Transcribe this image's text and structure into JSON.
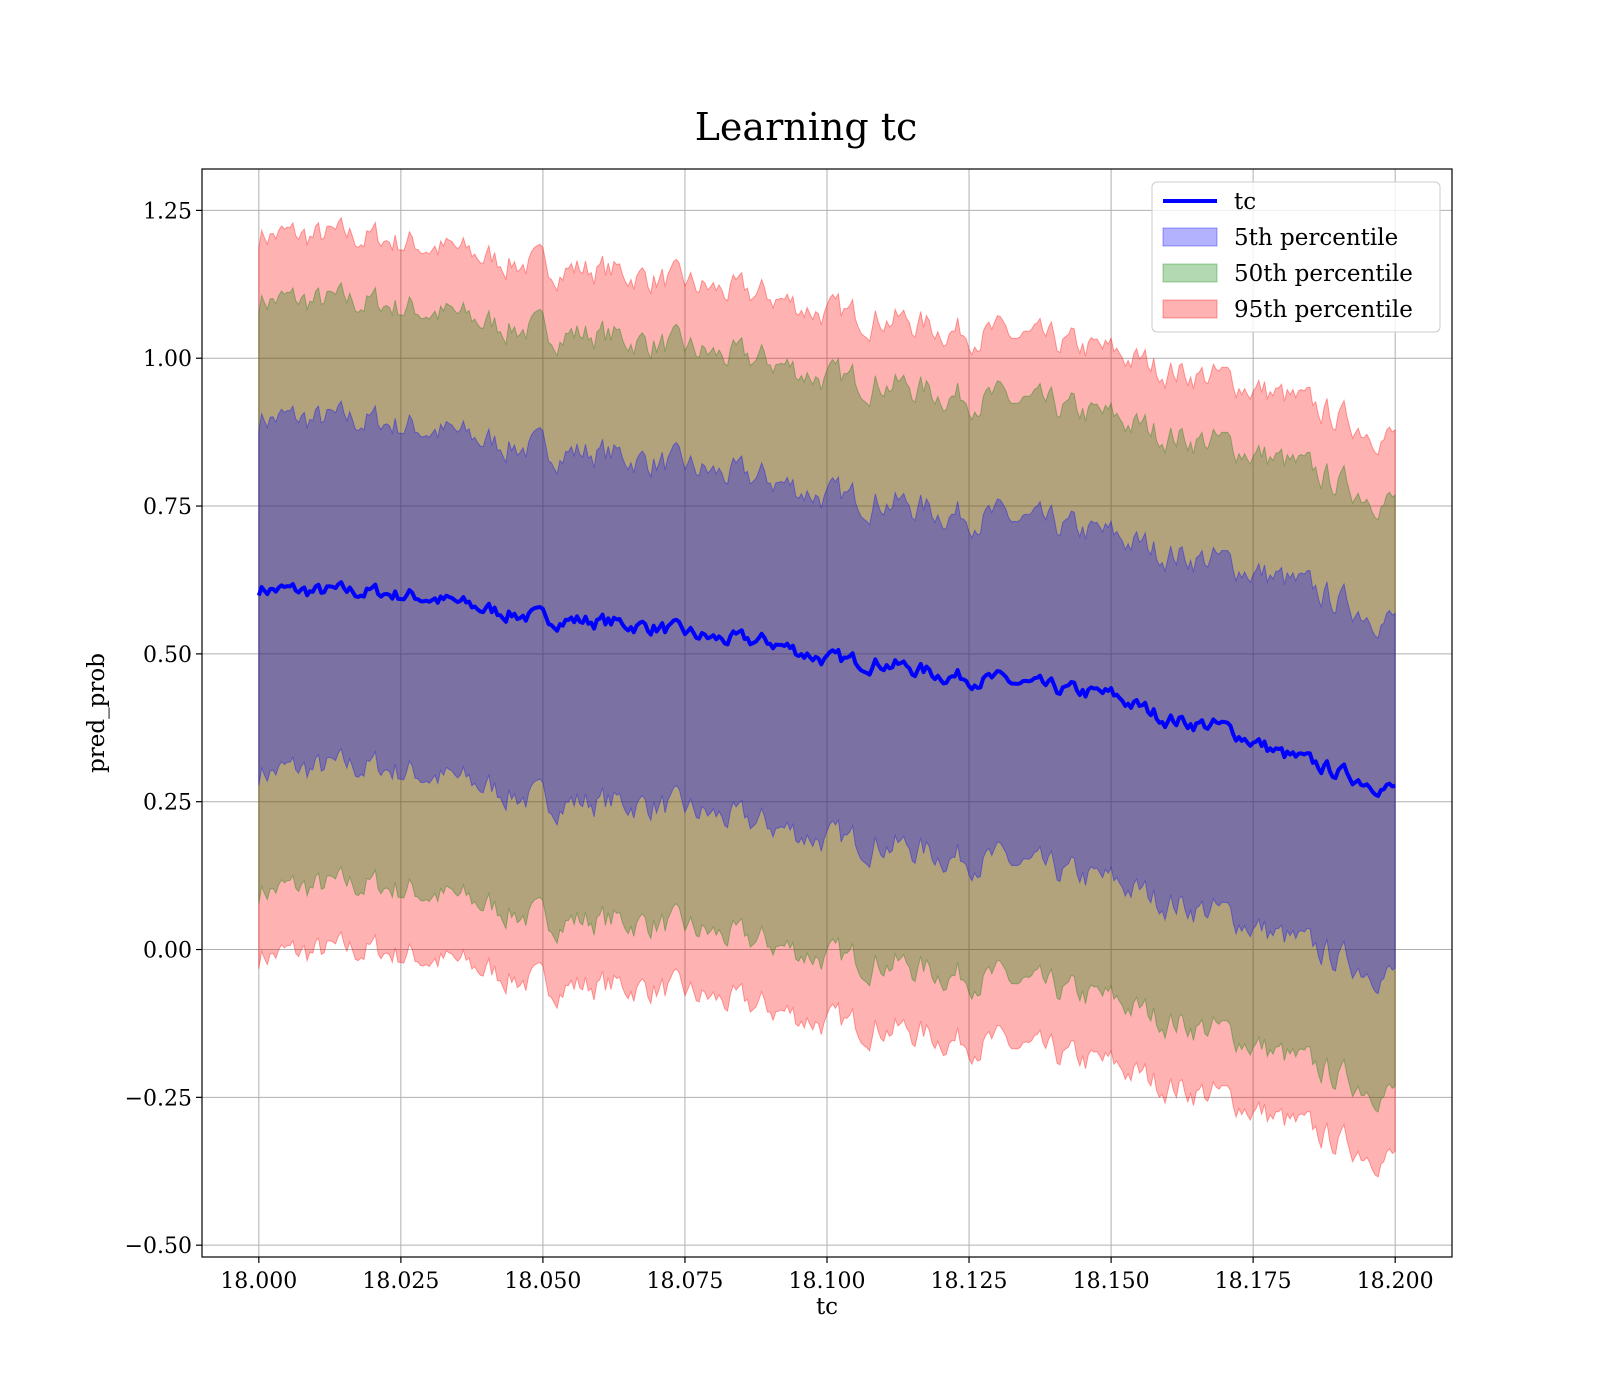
{
  "chart_data": {
    "type": "area",
    "title": "Learning tc",
    "xlabel": "tc",
    "ylabel": "pred_prob",
    "xlim": [
      17.99,
      18.21
    ],
    "ylim": [
      -0.52,
      1.32
    ],
    "xticks": [
      18.0,
      18.025,
      18.05,
      18.075,
      18.1,
      18.125,
      18.15,
      18.175,
      18.2
    ],
    "xtick_labels": [
      "18.000",
      "18.025",
      "18.050",
      "18.075",
      "18.100",
      "18.125",
      "18.150",
      "18.175",
      "18.200"
    ],
    "yticks": [
      -0.5,
      -0.25,
      0.0,
      0.25,
      0.5,
      0.75,
      1.0,
      1.25
    ],
    "ytick_labels": [
      "−0.50",
      "−0.25",
      "0.00",
      "0.25",
      "0.50",
      "0.75",
      "1.00",
      "1.25"
    ],
    "grid": true,
    "legend_position": "top-right",
    "x": [
      18.0,
      18.01,
      18.02,
      18.03,
      18.04,
      18.05,
      18.06,
      18.07,
      18.08,
      18.09,
      18.1,
      18.11,
      18.12,
      18.13,
      18.14,
      18.15,
      18.16,
      18.17,
      18.18,
      18.19,
      18.2
    ],
    "line": {
      "name": "tc",
      "color": "#0000ff",
      "values": [
        0.61,
        0.605,
        0.605,
        0.595,
        0.575,
        0.56,
        0.555,
        0.545,
        0.525,
        0.52,
        0.49,
        0.485,
        0.465,
        0.455,
        0.44,
        0.43,
        0.39,
        0.375,
        0.33,
        0.3,
        0.27
      ]
    },
    "bands": [
      {
        "name": "5th percentile",
        "color": "#0000ff",
        "lower": [
          0.3,
          0.305,
          0.31,
          0.295,
          0.275,
          0.25,
          0.25,
          0.245,
          0.225,
          0.21,
          0.185,
          0.18,
          0.16,
          0.15,
          0.13,
          0.115,
          0.08,
          0.06,
          0.02,
          -0.015,
          -0.045
        ],
        "upper": [
          0.9,
          0.895,
          0.895,
          0.88,
          0.86,
          0.845,
          0.84,
          0.825,
          0.805,
          0.795,
          0.765,
          0.76,
          0.74,
          0.73,
          0.715,
          0.7,
          0.67,
          0.655,
          0.625,
          0.59,
          0.555
        ]
      },
      {
        "name": "50th percentile",
        "color": "#008000",
        "lower": [
          0.1,
          0.105,
          0.11,
          0.095,
          0.075,
          0.05,
          0.05,
          0.045,
          0.025,
          0.01,
          -0.015,
          -0.02,
          -0.04,
          -0.05,
          -0.07,
          -0.085,
          -0.12,
          -0.14,
          -0.18,
          -0.215,
          -0.245
        ],
        "upper": [
          1.1,
          1.095,
          1.095,
          1.08,
          1.06,
          1.045,
          1.04,
          1.025,
          1.005,
          0.995,
          0.965,
          0.96,
          0.94,
          0.93,
          0.915,
          0.9,
          0.87,
          0.855,
          0.825,
          0.79,
          0.755
        ]
      },
      {
        "name": "95th percentile",
        "color": "#ff0000",
        "lower": [
          -0.01,
          -0.005,
          0.0,
          -0.015,
          -0.035,
          -0.06,
          -0.06,
          -0.065,
          -0.085,
          -0.1,
          -0.125,
          -0.13,
          -0.15,
          -0.16,
          -0.18,
          -0.195,
          -0.23,
          -0.25,
          -0.29,
          -0.325,
          -0.355
        ],
        "upper": [
          1.21,
          1.205,
          1.205,
          1.19,
          1.17,
          1.155,
          1.15,
          1.135,
          1.115,
          1.105,
          1.075,
          1.07,
          1.05,
          1.04,
          1.025,
          1.01,
          0.98,
          0.965,
          0.935,
          0.9,
          0.865
        ]
      }
    ]
  }
}
